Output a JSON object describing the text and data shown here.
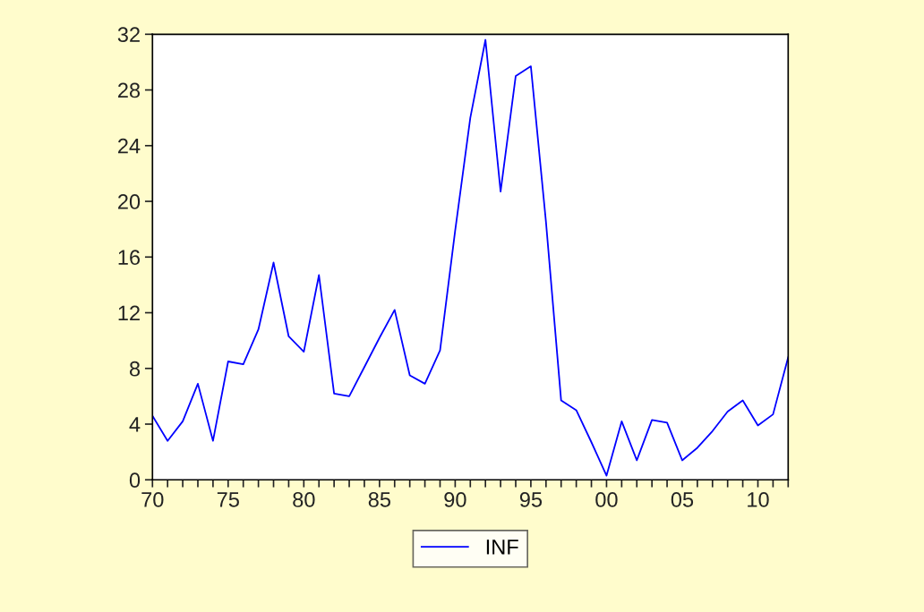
{
  "chart_data": {
    "type": "line",
    "x": [
      1970,
      1971,
      1972,
      1973,
      1974,
      1975,
      1976,
      1977,
      1978,
      1979,
      1980,
      1981,
      1982,
      1983,
      1984,
      1985,
      1986,
      1987,
      1988,
      1989,
      1990,
      1991,
      1992,
      1993,
      1994,
      1995,
      1996,
      1997,
      1998,
      1999,
      2000,
      2001,
      2002,
      2003,
      2004,
      2005,
      2006,
      2007,
      2008,
      2009,
      2010,
      2011,
      2012
    ],
    "series": [
      {
        "name": "INF",
        "color": "#0000ff",
        "values": [
          4.6,
          2.8,
          4.2,
          6.9,
          2.8,
          8.5,
          8.3,
          10.8,
          15.6,
          10.3,
          9.2,
          14.7,
          6.2,
          6.0,
          8.1,
          10.2,
          12.2,
          7.5,
          6.9,
          9.3,
          17.9,
          26.0,
          31.6,
          20.7,
          29.0,
          29.7,
          18.5,
          5.7,
          5.0,
          2.7,
          0.3,
          4.2,
          1.4,
          4.3,
          4.1,
          1.4,
          2.3,
          3.5,
          4.9,
          5.7,
          3.9,
          4.7,
          8.8
        ]
      }
    ],
    "xlim": [
      1970,
      2012
    ],
    "xticks": [
      {
        "value": 1970,
        "label": "70"
      },
      {
        "value": 1971,
        "label": null
      },
      {
        "value": 1972,
        "label": null
      },
      {
        "value": 1973,
        "label": null
      },
      {
        "value": 1974,
        "label": null
      },
      {
        "value": 1975,
        "label": "75"
      },
      {
        "value": 1976,
        "label": null
      },
      {
        "value": 1977,
        "label": null
      },
      {
        "value": 1978,
        "label": null
      },
      {
        "value": 1979,
        "label": null
      },
      {
        "value": 1980,
        "label": "80"
      },
      {
        "value": 1981,
        "label": null
      },
      {
        "value": 1982,
        "label": null
      },
      {
        "value": 1983,
        "label": null
      },
      {
        "value": 1984,
        "label": null
      },
      {
        "value": 1985,
        "label": "85"
      },
      {
        "value": 1986,
        "label": null
      },
      {
        "value": 1987,
        "label": null
      },
      {
        "value": 1988,
        "label": null
      },
      {
        "value": 1989,
        "label": null
      },
      {
        "value": 1990,
        "label": "90"
      },
      {
        "value": 1991,
        "label": null
      },
      {
        "value": 1992,
        "label": null
      },
      {
        "value": 1993,
        "label": null
      },
      {
        "value": 1994,
        "label": null
      },
      {
        "value": 1995,
        "label": "95"
      },
      {
        "value": 1996,
        "label": null
      },
      {
        "value": 1997,
        "label": null
      },
      {
        "value": 1998,
        "label": null
      },
      {
        "value": 1999,
        "label": null
      },
      {
        "value": 2000,
        "label": "00"
      },
      {
        "value": 2001,
        "label": null
      },
      {
        "value": 2002,
        "label": null
      },
      {
        "value": 2003,
        "label": null
      },
      {
        "value": 2004,
        "label": null
      },
      {
        "value": 2005,
        "label": "05"
      },
      {
        "value": 2006,
        "label": null
      },
      {
        "value": 2007,
        "label": null
      },
      {
        "value": 2008,
        "label": null
      },
      {
        "value": 2009,
        "label": null
      },
      {
        "value": 2010,
        "label": "10"
      },
      {
        "value": 2011,
        "label": null
      },
      {
        "value": 2012,
        "label": null
      }
    ],
    "ylim": [
      0,
      32
    ],
    "yticks": [
      0,
      4,
      8,
      12,
      16,
      20,
      24,
      28,
      32
    ],
    "grid": false,
    "legend": "bottom"
  }
}
